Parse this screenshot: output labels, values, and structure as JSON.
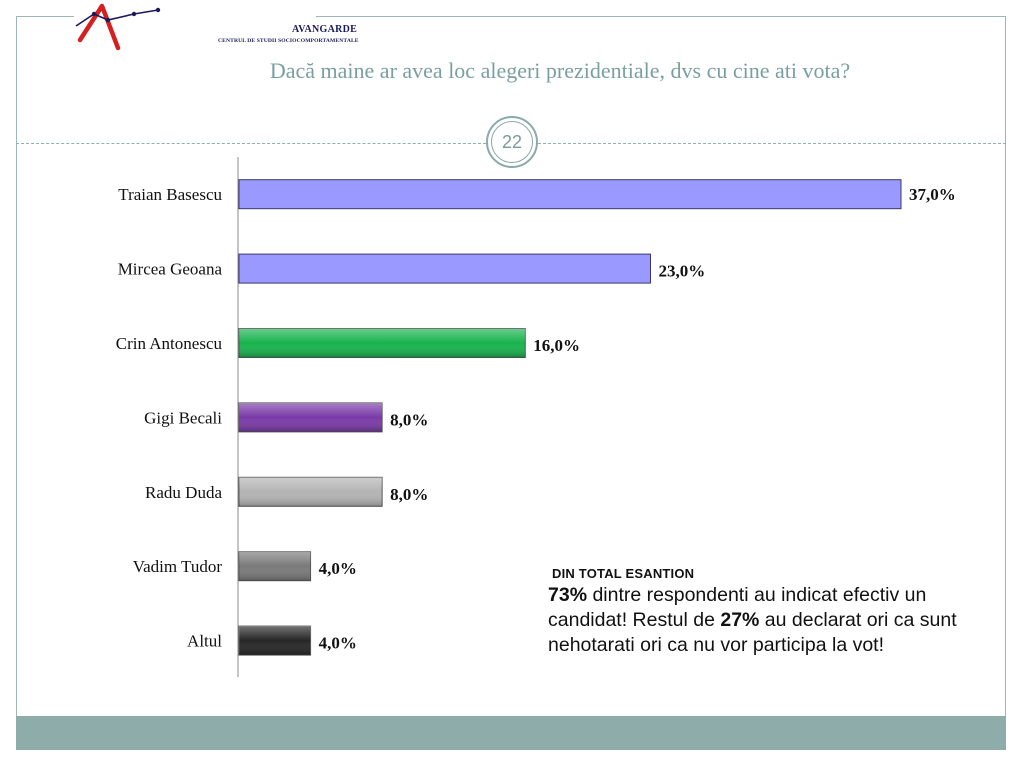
{
  "brand": {
    "name": "AVANGARDE",
    "subtitle": "CENTRUL DE STUDII SOCIOCOMPORTAMENTALE"
  },
  "title": "Dacă maine ar avea loc alegeri prezidentiale, dvs cu cine ati vota?",
  "slide_number": "22",
  "colors": {
    "frame": "#9fb6b6",
    "title": "#7a9fa1",
    "footer": "#8eadaa"
  },
  "chart_data": {
    "type": "bar",
    "orientation": "horizontal",
    "categories": [
      "Traian Basescu",
      "Mircea Geoana",
      "Crin Antonescu",
      "Gigi Becali",
      "Radu Duda",
      "Vadim Tudor",
      "Altul"
    ],
    "values": [
      37.0,
      23.0,
      16.0,
      8.0,
      8.0,
      4.0,
      4.0
    ],
    "labels": [
      "37,0%",
      "23,0%",
      "16,0%",
      "8,0%",
      "8,0%",
      "4,0%",
      "4,0%"
    ],
    "bar_colors": [
      "#9999ff",
      "#9999ff",
      "#18b34e",
      "#7a3aa8",
      "#b4b4b4",
      "#7a7a7a",
      "#262626"
    ],
    "xlim": [
      0,
      37.0
    ],
    "grid": false,
    "legend": "none"
  },
  "note": {
    "heading": "DIN TOTAL ESANTION",
    "pct1": "73%",
    "text1": " dintre respondenti au indicat efectiv un candidat! Restul de ",
    "pct2": "27%",
    "text2": " au declarat ori ca sunt  nehotarati ori ca nu vor participa la vot!"
  }
}
